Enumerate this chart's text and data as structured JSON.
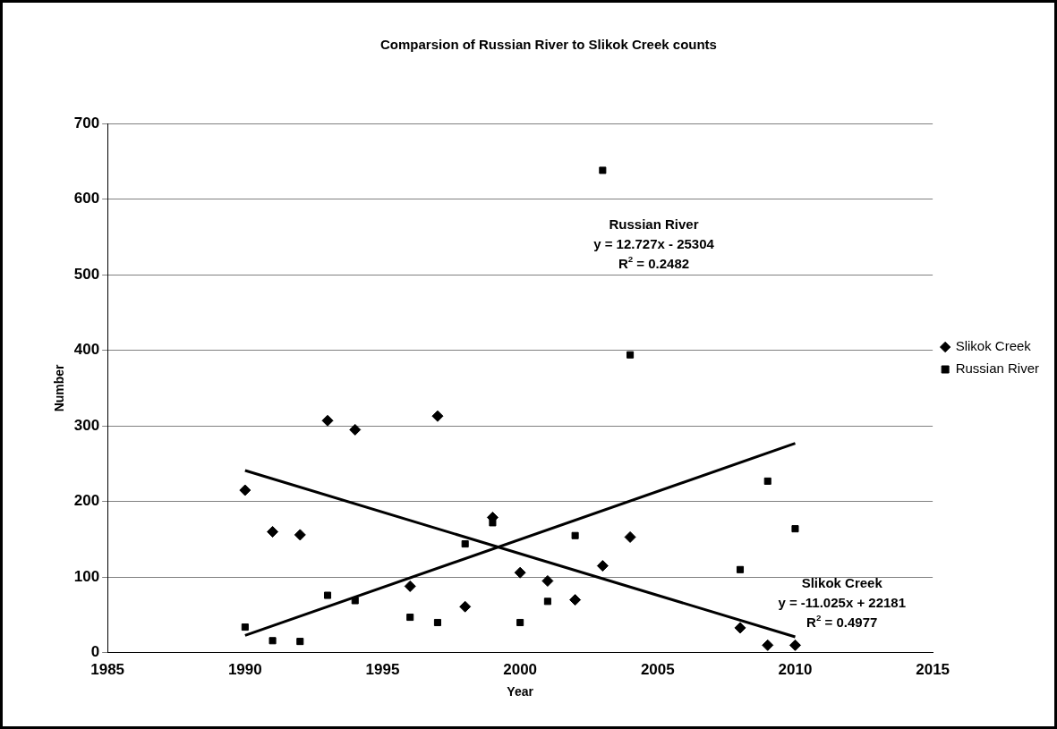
{
  "chart_data": {
    "type": "scatter",
    "title": "Comparsion of Russian River to Slikok Creek counts",
    "xlabel": "Year",
    "ylabel": "Number",
    "xlim": [
      1985,
      2015
    ],
    "xticks": [
      1985,
      1990,
      1995,
      2000,
      2005,
      2010,
      2015
    ],
    "ylim": [
      0,
      700
    ],
    "yticks": [
      0,
      100,
      200,
      300,
      400,
      500,
      600,
      700
    ],
    "grid": "y",
    "legend": "right",
    "series": [
      {
        "name": "Slikok Creek",
        "color": "#000000",
        "marker": "diamond",
        "x": [
          1990,
          1991,
          1992,
          1993,
          1994,
          1996,
          1997,
          1998,
          1999,
          2000,
          2001,
          2002,
          2003,
          2004,
          2008,
          2009,
          2010
        ],
        "values": [
          215,
          160,
          156,
          307,
          295,
          88,
          313,
          61,
          179,
          106,
          95,
          70,
          115,
          153,
          33,
          10,
          10
        ]
      },
      {
        "name": "Russian River",
        "color": "#000000",
        "marker": "square",
        "x": [
          1990,
          1991,
          1992,
          1993,
          1994,
          1996,
          1997,
          1998,
          1999,
          2000,
          2001,
          2002,
          2003,
          2004,
          2008,
          2009,
          2010
        ],
        "values": [
          34,
          16,
          15,
          76,
          69,
          47,
          40,
          144,
          172,
          40,
          68,
          155,
          638,
          394,
          110,
          227,
          164
        ]
      },
      {
        "type": "line",
        "color": "#000000",
        "marker": "none",
        "x": [
          1990,
          2010
        ],
        "values": [
          23,
          277
        ]
      },
      {
        "type": "line",
        "color": "#000000",
        "marker": "none",
        "x": [
          1990,
          2010
        ],
        "values": [
          241,
          21
        ]
      }
    ],
    "annotations": [
      "Russian River\ny = 12.727x - 25304\nR$^{2}$ = 0.2482",
      "Slikok Creek\ny = -11.025x + 22181\nR$^{2}$ = 0.4977"
    ]
  }
}
